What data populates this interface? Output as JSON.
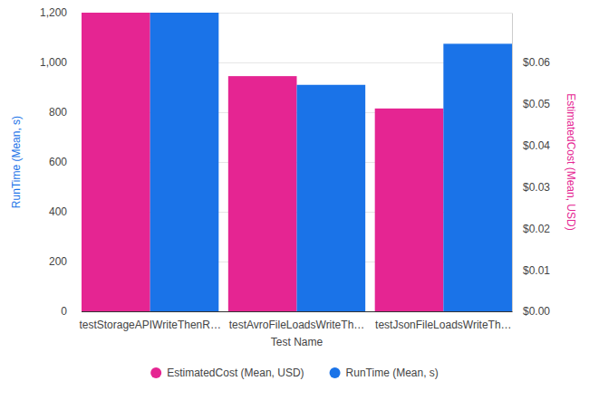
{
  "chart_data": {
    "type": "bar",
    "x_label": "Test Name",
    "y_label": "RunTime (Mean, s)",
    "y2_label": "EstimatedCost (Mean, USD)",
    "categories": [
      "testStorageAPIWriteThenR…",
      "testAvroFileLoadsWriteTh…",
      "testJsonFileLoadsWriteTh…"
    ],
    "series": [
      {
        "name": "EstimatedCost (Mean, USD)",
        "color": "#e52592",
        "axis": "y2",
        "values": [
          0.072,
          0.0567,
          0.0489
        ]
      },
      {
        "name": "RunTime (Mean, s)",
        "color": "#1a73e8",
        "values": [
          1200,
          910,
          1075
        ]
      }
    ],
    "ylim": [
      0,
      1200
    ],
    "yticks": [
      0,
      200,
      400,
      600,
      800,
      {
        "value": 1000,
        "label": "1,000"
      },
      {
        "value": 1200,
        "label": "1,200"
      }
    ],
    "y2lim": [
      0,
      0.072
    ],
    "y2ticks": [
      {
        "value": 0,
        "label": "$0.00"
      },
      {
        "value": 0.01,
        "label": "$0.01"
      },
      {
        "value": 0.02,
        "label": "$0.02"
      },
      {
        "value": 0.03,
        "label": "$0.03"
      },
      {
        "value": 0.04,
        "label": "$0.04"
      },
      {
        "value": 0.05,
        "label": "$0.05"
      },
      {
        "value": 0.06,
        "label": "$0.06"
      }
    ],
    "grid": true,
    "legend": "bottom"
  }
}
